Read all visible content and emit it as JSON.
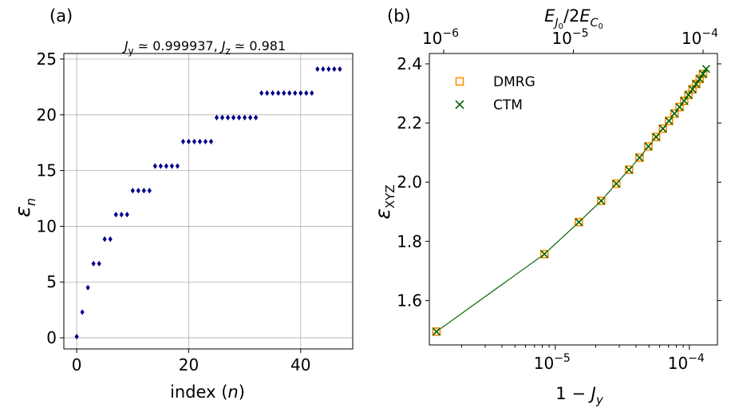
{
  "chart_data": [
    {
      "type": "scatter",
      "panel_label": "(a)",
      "title": "J_y ≃ 0.999937, J_z ≃ 0.981",
      "title_parts": {
        "a": "J",
        "a_sub": "y",
        "b": " ≃ 0.999937, ",
        "c": "J",
        "c_sub": "z",
        "d": " ≃ 0.981"
      },
      "xlabel": "index (n)",
      "xlabel_parts": {
        "pre": "index (",
        "var": "n",
        "post": ")"
      },
      "ylabel": "ε_n",
      "ylabel_parts": {
        "main": "ε",
        "sub": "n"
      },
      "xlim": [
        -2.3,
        49.3
      ],
      "ylim": [
        -1.0,
        25.5
      ],
      "xticks": [
        0,
        20,
        40
      ],
      "yticks": [
        0,
        5,
        10,
        15,
        20,
        25
      ],
      "grid": true,
      "marker": "diamond",
      "color": "#00008b",
      "series": [
        {
          "x": [
            0,
            1,
            2,
            3,
            4,
            5,
            6,
            7,
            8,
            9,
            10,
            11,
            12,
            13,
            14,
            15,
            16,
            17,
            18,
            19,
            20,
            21,
            22,
            23,
            24,
            25,
            26,
            27,
            28,
            29,
            30,
            31,
            32,
            33,
            34,
            35,
            36,
            37,
            38,
            39,
            40,
            41,
            42,
            43,
            44,
            45,
            46,
            47
          ],
          "y": [
            0.1,
            2.3,
            4.5,
            6.65,
            6.65,
            8.85,
            8.85,
            11.05,
            11.05,
            11.05,
            13.2,
            13.2,
            13.2,
            13.2,
            15.4,
            15.4,
            15.4,
            15.4,
            15.4,
            17.6,
            17.6,
            17.6,
            17.6,
            17.6,
            17.6,
            19.75,
            19.75,
            19.75,
            19.75,
            19.75,
            19.75,
            19.75,
            19.75,
            21.95,
            21.95,
            21.95,
            21.95,
            21.95,
            21.95,
            21.95,
            21.95,
            21.95,
            21.95,
            24.1,
            24.1,
            24.1,
            24.1,
            24.1
          ]
        }
      ]
    },
    {
      "type": "scatter",
      "panel_label": "(b)",
      "xscale": "log",
      "xlabel": "1 − J_y",
      "xlabel_parts": {
        "pre": "1 − ",
        "var": "J",
        "sub": "y"
      },
      "ylabel": "ε_XYZ",
      "ylabel_parts": {
        "main": "ε",
        "sub": "XYZ"
      },
      "top_xlabel": "E_J0/2E_C0",
      "top_xlabel_parts": {
        "a": "E",
        "a_sub": "J",
        "a_subsub": "0",
        "b": "/2",
        "c": "E",
        "c_sub": "C",
        "c_subsub": "0"
      },
      "xlim": [
        1.15e-06,
        0.000162
      ],
      "ylim": [
        1.45,
        2.435
      ],
      "xticks": [
        1e-05,
        0.0001
      ],
      "xtick_labels": [
        {
          "base": "10",
          "exp": "−5"
        },
        {
          "base": "10",
          "exp": "−4"
        }
      ],
      "top_xticks_label_positions": [
        0.0,
        0.5,
        1.0
      ],
      "top_xtick_labels": [
        {
          "base": "10",
          "exp": "−6"
        },
        {
          "base": "10",
          "exp": "−5"
        },
        {
          "base": "10",
          "exp": "−4"
        }
      ],
      "yticks": [
        1.6,
        1.8,
        2.0,
        2.2,
        2.4
      ],
      "ytick_labels": [
        "1.6",
        "1.8",
        "2.0",
        "2.2",
        "2.4"
      ],
      "grid": false,
      "legend_position": "upper-left",
      "series": [
        {
          "name": "DMRG",
          "marker": "open-square",
          "color": "#ff8c00",
          "x": [
            1.3e-06,
            8.3e-06,
            1.5e-05,
            2.2e-05,
            2.85e-05,
            3.55e-05,
            4.25e-05,
            4.95e-05,
            5.65e-05,
            6.35e-05,
            7.05e-05,
            7.75e-05,
            8.45e-05,
            9.15e-05,
            9.85e-05,
            0.0001055,
            0.0001125,
            0.0001195,
            0.0001265
          ],
          "y": [
            1.495,
            1.757,
            1.865,
            1.937,
            1.995,
            2.042,
            2.083,
            2.121,
            2.153,
            2.181,
            2.207,
            2.232,
            2.254,
            2.275,
            2.295,
            2.314,
            2.332,
            2.349,
            2.366
          ]
        },
        {
          "name": "CTM",
          "marker": "x",
          "color": "#006400",
          "x": [
            1.3e-06,
            8.3e-06,
            1.5e-05,
            2.2e-05,
            2.85e-05,
            3.55e-05,
            4.25e-05,
            4.95e-05,
            5.65e-05,
            6.35e-05,
            7.05e-05,
            7.75e-05,
            8.45e-05,
            9.15e-05,
            9.85e-05,
            0.0001055,
            0.0001125,
            0.0001195,
            0.0001265,
            0.0001335
          ],
          "y": [
            1.495,
            1.757,
            1.865,
            1.937,
            1.995,
            2.042,
            2.083,
            2.121,
            2.153,
            2.181,
            2.207,
            2.232,
            2.254,
            2.275,
            2.295,
            2.314,
            2.332,
            2.349,
            2.366,
            2.383
          ]
        }
      ]
    }
  ]
}
